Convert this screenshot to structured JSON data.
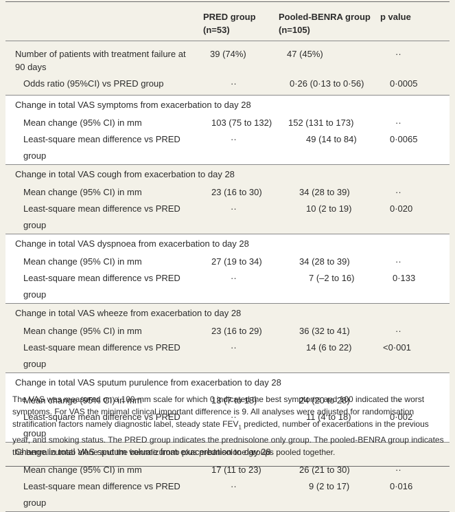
{
  "header": {
    "col2": "PRED group (n=53)",
    "col3": "Pooled-BENRA group (n=105)",
    "col4": "p value"
  },
  "rows": [
    {
      "label": "Number of patients with treatment failure at 90 days",
      "pred": "39 (74%)",
      "benra": "47 (45%)",
      "p": "··"
    },
    {
      "label": "Odds ratio (95%CI) vs PRED group",
      "pred": "··",
      "benra": "0·26 (0·13 to 0·56)",
      "p": "0·0005"
    },
    {
      "label": "Change in total VAS symptoms from exacerbation to day 28"
    },
    {
      "label": "Mean change (95% CI) in mm",
      "pred": "103 (75 to 132)",
      "benra": "152 (131 to 173)",
      "p": "··"
    },
    {
      "label": "Least-square mean difference vs PRED group",
      "pred": "··",
      "benra": "49 (14 to 84)",
      "p": "0·0065"
    },
    {
      "label": "Change in total VAS cough from exacerbation to day 28"
    },
    {
      "label": "Mean change (95% CI) in mm",
      "pred": "23 (16 to 30)",
      "benra": "34 (28 to 39)",
      "p": "··"
    },
    {
      "label": "Least-square mean difference vs PRED group",
      "pred": "··",
      "benra": "10 (2 to 19)",
      "p": "0·020"
    },
    {
      "label": "Change in total VAS dyspnoea from exacerbation to day 28"
    },
    {
      "label": "Mean change (95% CI) in mm",
      "pred": "27 (19 to 34)",
      "benra": "34 (28 to 39)",
      "p": "··"
    },
    {
      "label": "Least-square mean difference vs PRED group",
      "pred": "··",
      "benra": "7 (–2 to 16)",
      "p": "0·133"
    },
    {
      "label": "Change in total VAS wheeze from exacerbation to day 28"
    },
    {
      "label": "Mean change (95% CI) in mm",
      "pred": "23 (16 to 29)",
      "benra": "36 (32 to 41)",
      "p": "··"
    },
    {
      "label": "Least-square mean difference vs PRED group",
      "pred": "··",
      "benra": "14 (6 to 22)",
      "p": "<0·001"
    },
    {
      "label": "Change in total VAS sputum purulence from exacerbation to day 28"
    },
    {
      "label": "Mean change (95% CI) in mm",
      "pred": "13 (7 to 18)",
      "benra": "24 (20 to 28)",
      "p": "··"
    },
    {
      "label": "Least-square mean difference vs PRED group",
      "pred": "··",
      "benra": "11 (4 to 18)",
      "p": "0·002"
    },
    {
      "label": "Change in total VAS sputum volume from exacerbation to day 28"
    },
    {
      "label": "Mean change (95% CI) in mm",
      "pred": "17 (11 to 23)",
      "benra": "26 (21 to 30)",
      "p": "··"
    },
    {
      "label": "Least-square mean difference vs PRED group",
      "pred": "··",
      "benra": "9 (2 to 17)",
      "p": "0·016"
    }
  ],
  "footnote": {
    "part1": "The VAS was measured on a 100 mm scale for which 0 indicated the best symptoms and 100 indicated the worst symptoms. For VAS the minimal clinical important difference is 9. All analyses were adjusted for randomisation stratification factors namely diagnostic label, steady state FEV",
    "sub": "1",
    "part2": " predicted, number of exacerbations in the previous year, and smoking status. The PRED group indicates the prednisolone only group. The pooled-BENRA group indicates the benralizumab alone and the benralizumab plus prednisolone groups pooled together."
  }
}
